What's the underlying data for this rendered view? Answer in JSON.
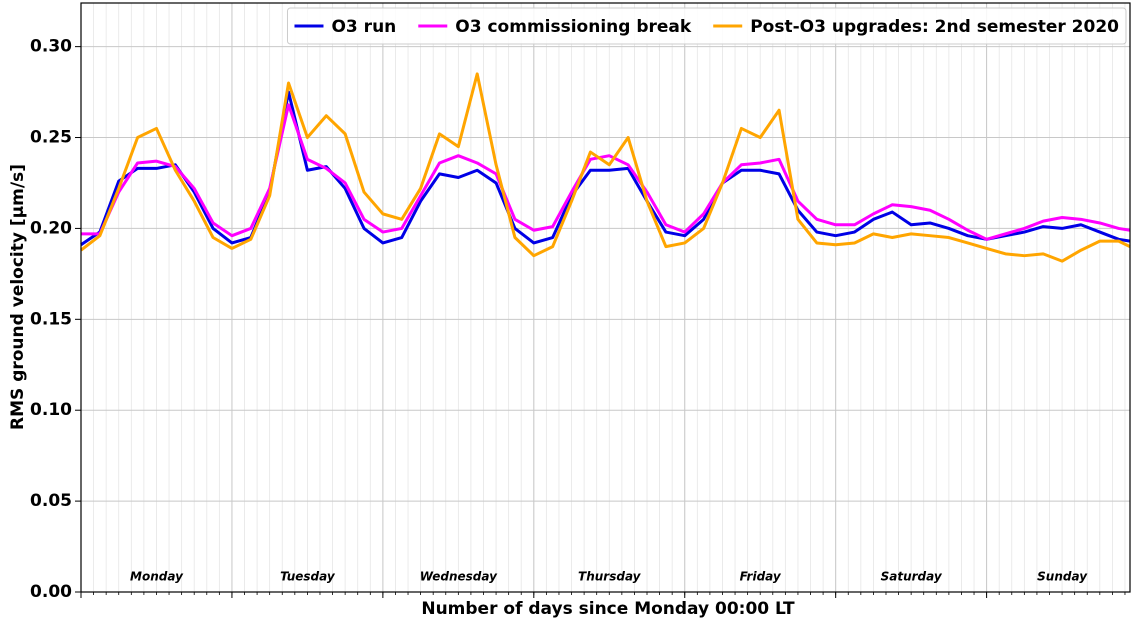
{
  "chart_data": {
    "type": "line",
    "xlabel": "Number of days since Monday 00:00 LT",
    "ylabel": "RMS ground velocity [μm/s]",
    "xlim": [
      0,
      6.95
    ],
    "ylim": [
      0,
      0.324
    ],
    "xticks": [
      0,
      1,
      2,
      3,
      4,
      5,
      6
    ],
    "yticks": [
      {
        "value": 0,
        "label": "0.00"
      },
      {
        "value": 0.05,
        "label": "0.05"
      },
      {
        "value": 0.1,
        "label": "0.10"
      },
      {
        "value": 0.15,
        "label": "0.15"
      },
      {
        "value": 0.2,
        "label": "0.20"
      },
      {
        "value": 0.25,
        "label": "0.25"
      },
      {
        "value": 0.3,
        "label": "0.30"
      }
    ],
    "grid": true,
    "legend": "upper right",
    "day_labels": [
      "Monday",
      "Tuesday",
      "Wednesday",
      "Thursday",
      "Friday",
      "Saturday",
      "Sunday"
    ],
    "x": [
      0,
      0.125,
      0.25,
      0.375,
      0.5,
      0.625,
      0.75,
      0.875,
      1,
      1.125,
      1.25,
      1.375,
      1.5,
      1.625,
      1.75,
      1.875,
      2,
      2.125,
      2.25,
      2.375,
      2.5,
      2.625,
      2.75,
      2.875,
      3,
      3.125,
      3.25,
      3.375,
      3.5,
      3.625,
      3.75,
      3.875,
      4,
      4.125,
      4.25,
      4.375,
      4.5,
      4.625,
      4.75,
      4.875,
      5,
      5.125,
      5.25,
      5.375,
      5.5,
      5.625,
      5.75,
      5.875,
      6,
      6.125,
      6.25,
      6.375,
      6.5,
      6.625,
      6.75,
      6.875,
      6.95
    ],
    "series": [
      {
        "name": "O3 run",
        "color": "#0000e6",
        "values": [
          0.191,
          0.198,
          0.226,
          0.233,
          0.233,
          0.235,
          0.22,
          0.2,
          0.192,
          0.195,
          0.22,
          0.275,
          0.232,
          0.234,
          0.222,
          0.2,
          0.192,
          0.195,
          0.215,
          0.23,
          0.228,
          0.232,
          0.225,
          0.2,
          0.192,
          0.195,
          0.218,
          0.232,
          0.232,
          0.233,
          0.215,
          0.198,
          0.196,
          0.205,
          0.225,
          0.232,
          0.232,
          0.23,
          0.21,
          0.198,
          0.196,
          0.198,
          0.205,
          0.209,
          0.202,
          0.203,
          0.2,
          0.196,
          0.194,
          0.196,
          0.198,
          0.201,
          0.2,
          0.202,
          0.198,
          0.194,
          0.193
        ]
      },
      {
        "name": "O3 commissioning break",
        "color": "#ff00ff",
        "values": [
          0.197,
          0.197,
          0.22,
          0.236,
          0.237,
          0.234,
          0.222,
          0.203,
          0.196,
          0.2,
          0.222,
          0.268,
          0.238,
          0.233,
          0.225,
          0.205,
          0.198,
          0.2,
          0.218,
          0.236,
          0.24,
          0.236,
          0.23,
          0.205,
          0.199,
          0.201,
          0.22,
          0.238,
          0.24,
          0.235,
          0.22,
          0.202,
          0.198,
          0.208,
          0.225,
          0.235,
          0.236,
          0.238,
          0.215,
          0.205,
          0.202,
          0.202,
          0.208,
          0.213,
          0.212,
          0.21,
          0.205,
          0.199,
          0.194,
          0.197,
          0.2,
          0.204,
          0.206,
          0.205,
          0.203,
          0.2,
          0.199
        ]
      },
      {
        "name": "Post-O3 upgrades: 2nd semester 2020",
        "color": "#ffa500",
        "values": [
          0.188,
          0.196,
          0.222,
          0.25,
          0.255,
          0.232,
          0.215,
          0.195,
          0.189,
          0.194,
          0.218,
          0.28,
          0.25,
          0.262,
          0.252,
          0.22,
          0.208,
          0.205,
          0.222,
          0.252,
          0.245,
          0.285,
          0.235,
          0.195,
          0.185,
          0.19,
          0.215,
          0.242,
          0.235,
          0.25,
          0.215,
          0.19,
          0.192,
          0.2,
          0.225,
          0.255,
          0.25,
          0.265,
          0.205,
          0.192,
          0.191,
          0.192,
          0.197,
          0.195,
          0.197,
          0.196,
          0.195,
          0.192,
          0.189,
          0.186,
          0.185,
          0.186,
          0.182,
          0.188,
          0.193,
          0.193,
          0.19
        ]
      }
    ]
  }
}
